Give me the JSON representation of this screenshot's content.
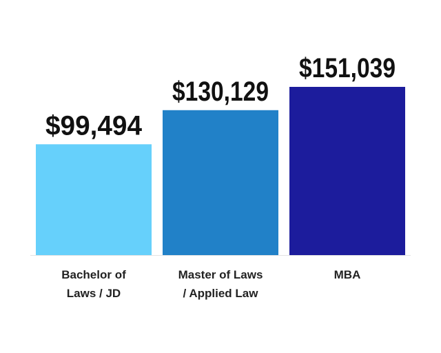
{
  "chart_data": {
    "type": "bar",
    "categories": [
      [
        "Bachelor of",
        "Laws / JD"
      ],
      [
        "Master of Laws",
        "/ Applied Law"
      ],
      [
        "MBA"
      ]
    ],
    "values": [
      99494,
      130129,
      151039
    ],
    "value_labels": [
      "$99,494",
      "$130,129",
      "$151,039"
    ],
    "colors": [
      "#66d0fb",
      "#2181c8",
      "#1c1c9c"
    ],
    "axis_line_color": "#e3e3e3",
    "ylim": [
      0,
      151039
    ],
    "grid": false,
    "legend": "none",
    "title": "",
    "xlabel": "",
    "ylabel": ""
  }
}
